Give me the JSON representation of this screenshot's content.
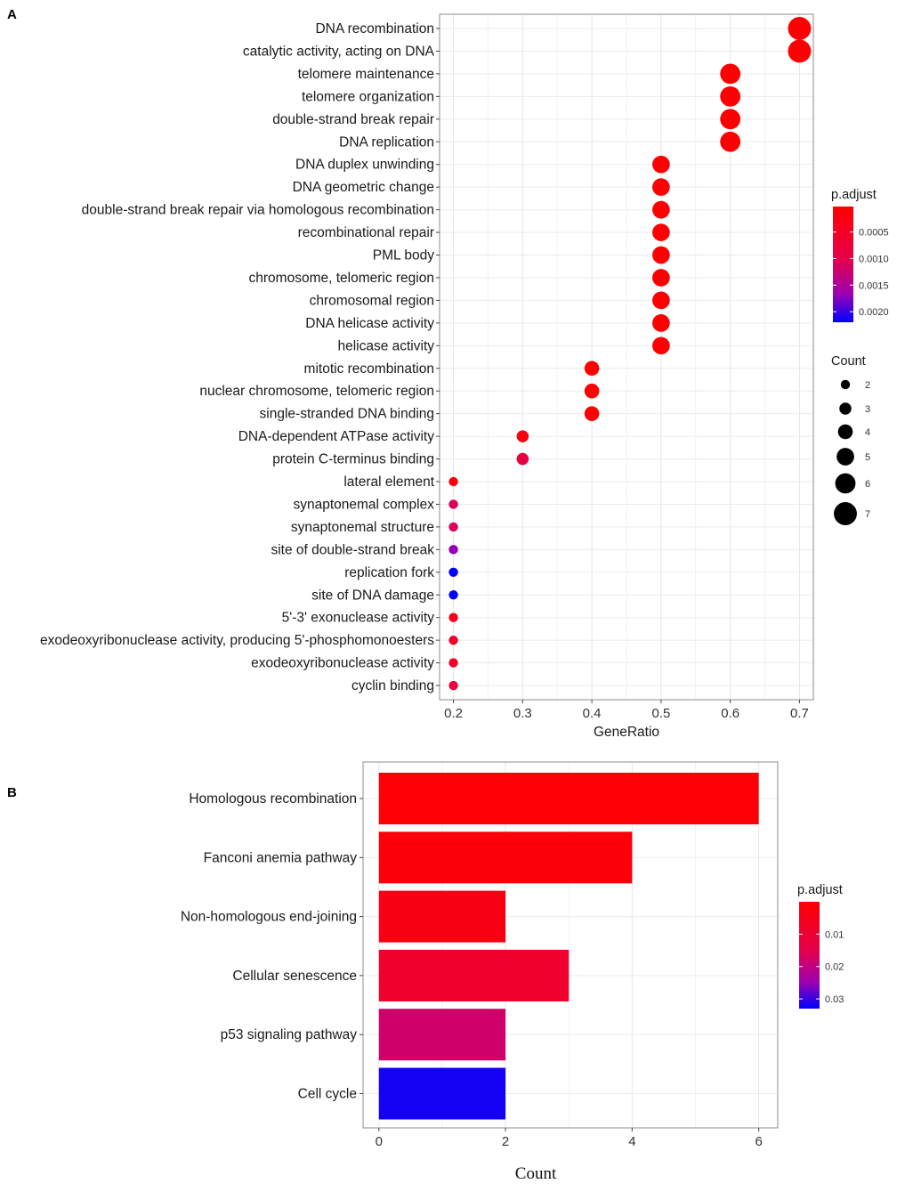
{
  "chart_data": [
    {
      "panel": "A",
      "type": "scatter",
      "xlabel": "GeneRatio",
      "xlim": [
        0.18,
        0.72
      ],
      "xticks": [
        "0.2",
        "0.3",
        "0.4",
        "0.5",
        "0.6",
        "0.7"
      ],
      "grid": true,
      "categories": [
        "DNA recombination",
        "catalytic activity, acting on DNA",
        "telomere maintenance",
        "telomere organization",
        "double-strand break repair",
        "DNA replication",
        "DNA duplex unwinding",
        "DNA geometric change",
        "double-strand break repair via homologous recombination",
        "recombinational repair",
        "PML body",
        "chromosome, telomeric region",
        "chromosomal region",
        "DNA helicase activity",
        "helicase activity",
        "mitotic recombination",
        "nuclear chromosome, telomeric region",
        "single-stranded DNA binding",
        "DNA-dependent ATPase activity",
        "protein C-terminus binding",
        "lateral element",
        "synaptonemal complex",
        "synaptonemal structure",
        "site of double-strand break",
        "replication fork",
        "site of DNA damage",
        "5'-3' exonuclease activity",
        "exodeoxyribonuclease activity, producing 5'-phosphomonoesters",
        "exodeoxyribonuclease activity",
        "cyclin binding"
      ],
      "gene_ratio": [
        0.7,
        0.7,
        0.6,
        0.6,
        0.6,
        0.6,
        0.5,
        0.5,
        0.5,
        0.5,
        0.5,
        0.5,
        0.5,
        0.5,
        0.5,
        0.4,
        0.4,
        0.4,
        0.3,
        0.3,
        0.2,
        0.2,
        0.2,
        0.2,
        0.2,
        0.2,
        0.2,
        0.2,
        0.2,
        0.2
      ],
      "count": [
        7,
        7,
        6,
        6,
        6,
        6,
        5,
        5,
        5,
        5,
        5,
        5,
        5,
        5,
        5,
        4,
        4,
        4,
        3,
        3,
        2,
        2,
        2,
        2,
        2,
        2,
        2,
        2,
        2,
        2
      ],
      "p_adjust": [
        5e-05,
        5e-05,
        5e-05,
        5e-05,
        5e-05,
        5e-05,
        5e-05,
        5e-05,
        5e-05,
        5e-05,
        5e-05,
        5e-05,
        5e-05,
        5e-05,
        5e-05,
        5e-05,
        5e-05,
        5e-05,
        0.0002,
        0.0009,
        0.0002,
        0.0011,
        0.0011,
        0.0017,
        0.0022,
        0.0022,
        0.0004,
        0.0006,
        0.0006,
        0.0008
      ],
      "color_legend": {
        "title": "p.adjust",
        "range": [
          2e-05,
          0.0022
        ],
        "ticks": [
          0.0005,
          0.001,
          0.0015,
          0.002
        ],
        "tick_labels": [
          "0.0005",
          "0.0010",
          "0.0015",
          "0.0020"
        ],
        "low_color": "#ff0000",
        "high_color": "#0000ff"
      },
      "size_legend": {
        "title": "Count",
        "values": [
          2,
          3,
          4,
          5,
          6,
          7
        ],
        "labels": [
          "2",
          "3",
          "4",
          "5",
          "6",
          "7"
        ]
      }
    },
    {
      "panel": "B",
      "type": "bar",
      "orientation": "horizontal",
      "xlabel": "Count",
      "xlim": [
        -0.25,
        6.3
      ],
      "xticks": [
        "0",
        "2",
        "4",
        "6"
      ],
      "grid": true,
      "categories": [
        "Homologous recombination",
        "Fanconi anemia pathway",
        "Non-homologous end-joining",
        "Cellular senescence",
        "p53 signaling pathway",
        "Cell cycle"
      ],
      "values": [
        6,
        4,
        2,
        3,
        2,
        2
      ],
      "p_adjust": [
        0.001,
        0.002,
        0.004,
        0.009,
        0.018,
        0.032
      ],
      "color_legend": {
        "title": "p.adjust",
        "range": [
          0.0,
          0.033
        ],
        "ticks": [
          0.01,
          0.02,
          0.03
        ],
        "tick_labels": [
          "0.01",
          "0.02",
          "0.03"
        ],
        "low_color": "#ff0000",
        "high_color": "#0000ff"
      }
    }
  ],
  "panels": {
    "a_letter": "A",
    "b_letter": "B"
  }
}
